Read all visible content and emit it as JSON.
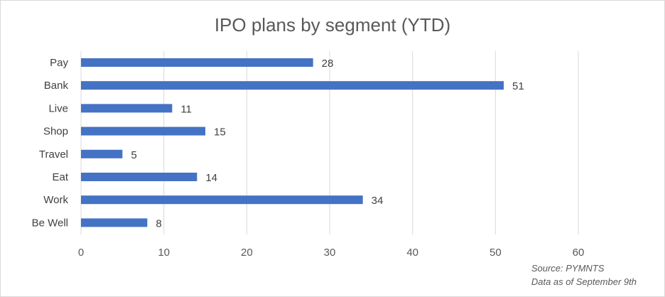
{
  "chart_data": {
    "type": "bar",
    "orientation": "horizontal",
    "title": "IPO plans by segment (YTD)",
    "categories": [
      "Pay",
      "Bank",
      "Live",
      "Shop",
      "Travel",
      "Eat",
      "Work",
      "Be Well"
    ],
    "values": [
      28,
      51,
      11,
      15,
      5,
      14,
      34,
      8
    ],
    "xlim": [
      0,
      60
    ],
    "xticks": [
      0,
      10,
      20,
      30,
      40,
      50,
      60
    ],
    "grid": true,
    "bar_color": "#4472c4",
    "gridline_color": "#d9d9d9"
  },
  "source": {
    "line1": "Source: PYMNTS",
    "line2": "Data as of September 9th"
  }
}
